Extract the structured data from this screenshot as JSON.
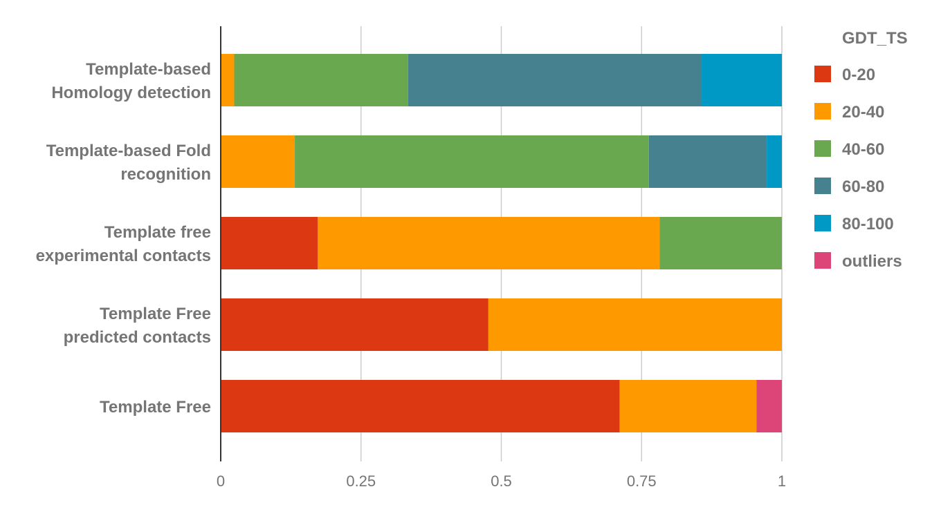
{
  "chart_data": {
    "type": "bar",
    "orientation": "horizontal",
    "stacked": true,
    "title": "",
    "xlabel": "",
    "ylabel": "",
    "xlim": [
      0,
      1
    ],
    "grid": true,
    "legend_position": "right",
    "legend_title": "GDT_TS",
    "x_ticks": [
      "0",
      "0.25",
      "0.5",
      "0.75",
      "1"
    ],
    "x_tick_values": [
      0,
      0.25,
      0.5,
      0.75,
      1
    ],
    "categories": [
      [
        "Template-based",
        "Homology detection"
      ],
      [
        "Template-based Fold",
        "recognition"
      ],
      [
        "Template free",
        "experimental contacts"
      ],
      [
        "Template Free",
        "predicted contacts"
      ],
      [
        "Template Free"
      ]
    ],
    "series": [
      {
        "name": "0-20",
        "color": "#dc3912",
        "values": [
          0,
          0,
          0.173,
          0.477,
          0.711
        ]
      },
      {
        "name": "20-40",
        "color": "#ff9900",
        "values": [
          0.024,
          0.132,
          0.609,
          0.523,
          0.244
        ]
      },
      {
        "name": "40-60",
        "color": "#6aa84f",
        "values": [
          0.31,
          0.631,
          0.218,
          0,
          0
        ]
      },
      {
        "name": "60-80",
        "color": "#45818e",
        "values": [
          0.523,
          0.21,
          0,
          0,
          0
        ]
      },
      {
        "name": "80-100",
        "color": "#0099c6",
        "values": [
          0.143,
          0.027,
          0,
          0,
          0
        ]
      },
      {
        "name": "outliers",
        "color": "#dd4477",
        "values": [
          0,
          0,
          0,
          0,
          0.045
        ]
      }
    ]
  }
}
